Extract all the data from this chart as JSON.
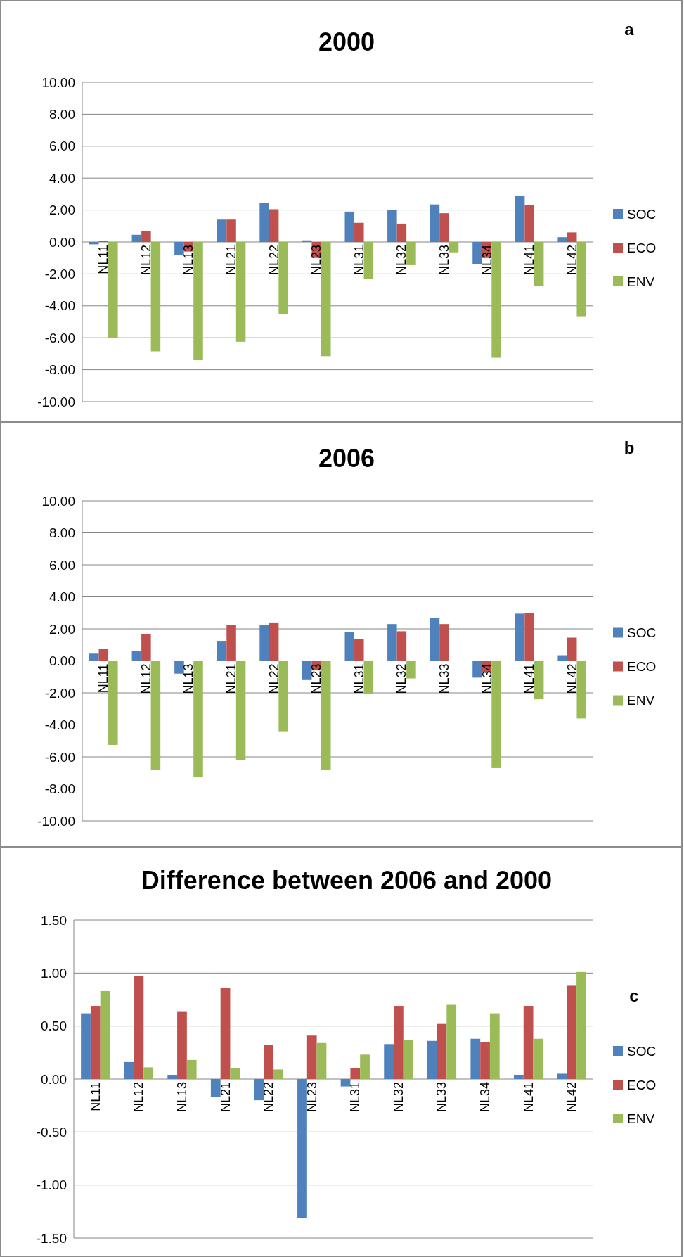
{
  "chart_data": [
    {
      "type": "bar",
      "title": "2000",
      "annotations": [
        "a"
      ],
      "categories": [
        "NL11",
        "NL12",
        "NL13",
        "NL21",
        "NL22",
        "NL23",
        "NL31",
        "NL32",
        "NL33",
        "NL34",
        "NL41",
        "NL42"
      ],
      "series": [
        {
          "name": "SOC",
          "color": "#4f81bd",
          "values": [
            -0.15,
            0.45,
            -0.8,
            1.4,
            2.45,
            0.1,
            1.9,
            2.0,
            2.35,
            -1.4,
            2.9,
            0.3
          ]
        },
        {
          "name": "ECO",
          "color": "#c0504d",
          "values": [
            0.05,
            0.7,
            -0.6,
            1.4,
            2.05,
            -1.0,
            1.2,
            1.15,
            1.8,
            -1.0,
            2.3,
            0.6
          ]
        },
        {
          "name": "ENV",
          "color": "#9bbb59",
          "values": [
            -6.0,
            -6.85,
            -7.4,
            -6.25,
            -4.5,
            -7.15,
            -2.3,
            -1.45,
            -0.65,
            -7.25,
            -2.75,
            -4.65
          ]
        }
      ],
      "ylim": [
        -10,
        10
      ],
      "yticks": [
        {
          "value": -10,
          "label": "-10.00"
        },
        {
          "value": -8,
          "label": "-8.00"
        },
        {
          "value": -6,
          "label": "-6.00"
        },
        {
          "value": -4,
          "label": "-4.00"
        },
        {
          "value": -2,
          "label": "-2.00"
        },
        {
          "value": 0,
          "label": "0.00"
        },
        {
          "value": 2,
          "label": "2.00"
        },
        {
          "value": 4,
          "label": "4.00"
        },
        {
          "value": 6,
          "label": "6.00"
        },
        {
          "value": 8,
          "label": "8.00"
        },
        {
          "value": 10,
          "label": "10.00"
        }
      ],
      "grid": "y",
      "legend": "right"
    },
    {
      "type": "bar",
      "title": "2006",
      "annotations": [
        "b"
      ],
      "categories": [
        "NL11",
        "NL12",
        "NL13",
        "NL21",
        "NL22",
        "NL23",
        "NL31",
        "NL32",
        "NL33",
        "NL34",
        "NL41",
        "NL42"
      ],
      "series": [
        {
          "name": "SOC",
          "color": "#4f81bd",
          "values": [
            0.45,
            0.6,
            -0.8,
            1.25,
            2.25,
            -1.2,
            1.8,
            2.3,
            2.7,
            -1.05,
            2.95,
            0.35
          ]
        },
        {
          "name": "ECO",
          "color": "#c0504d",
          "values": [
            0.75,
            1.65,
            0,
            2.25,
            2.4,
            -0.6,
            1.35,
            1.85,
            2.3,
            -0.7,
            3.0,
            1.45
          ]
        },
        {
          "name": "ENV",
          "color": "#9bbb59",
          "values": [
            -5.25,
            -6.8,
            -7.25,
            -6.2,
            -4.4,
            -6.8,
            -2.05,
            -1.1,
            0,
            -6.7,
            -2.4,
            -3.6
          ]
        }
      ],
      "ylim": [
        -10,
        10
      ],
      "yticks": [
        {
          "value": -10,
          "label": "-10.00"
        },
        {
          "value": -8,
          "label": "-8.00"
        },
        {
          "value": -6,
          "label": "-6.00"
        },
        {
          "value": -4,
          "label": "-4.00"
        },
        {
          "value": -2,
          "label": "-2.00"
        },
        {
          "value": 0,
          "label": "0.00"
        },
        {
          "value": 2,
          "label": "2.00"
        },
        {
          "value": 4,
          "label": "4.00"
        },
        {
          "value": 6,
          "label": "6.00"
        },
        {
          "value": 8,
          "label": "8.00"
        },
        {
          "value": 10,
          "label": "10.00"
        }
      ],
      "grid": "y",
      "legend": "right"
    },
    {
      "type": "bar",
      "title": "Difference between 2006 and 2000",
      "annotations": [
        "c"
      ],
      "categories": [
        "NL11",
        "NL12",
        "NL13",
        "NL21",
        "NL22",
        "NL23",
        "NL31",
        "NL32",
        "NL33",
        "NL34",
        "NL41",
        "NL42"
      ],
      "series": [
        {
          "name": "SOC",
          "color": "#4f81bd",
          "values": [
            0.62,
            0.16,
            0.04,
            -0.17,
            -0.2,
            -1.31,
            -0.07,
            0.33,
            0.36,
            0.38,
            0.04,
            0.05
          ]
        },
        {
          "name": "ECO",
          "color": "#c0504d",
          "values": [
            0.69,
            0.97,
            0.64,
            0.86,
            0.32,
            0.41,
            0.1,
            0.69,
            0.52,
            0.35,
            0.69,
            0.88
          ]
        },
        {
          "name": "ENV",
          "color": "#9bbb59",
          "values": [
            0.83,
            0.11,
            0.18,
            0.1,
            0.09,
            0.34,
            0.23,
            0.37,
            0.7,
            0.62,
            0.38,
            1.01
          ]
        }
      ],
      "ylim": [
        -1.5,
        1.5
      ],
      "yticks": [
        {
          "value": -1.5,
          "label": "-1.50"
        },
        {
          "value": -1,
          "label": "-1.00"
        },
        {
          "value": -0.5,
          "label": "-0.50"
        },
        {
          "value": 0,
          "label": "0.00"
        },
        {
          "value": 0.5,
          "label": "0.50"
        },
        {
          "value": 1,
          "label": "1.00"
        },
        {
          "value": 1.5,
          "label": "1.50"
        }
      ],
      "grid": "y",
      "legend": "right"
    }
  ]
}
